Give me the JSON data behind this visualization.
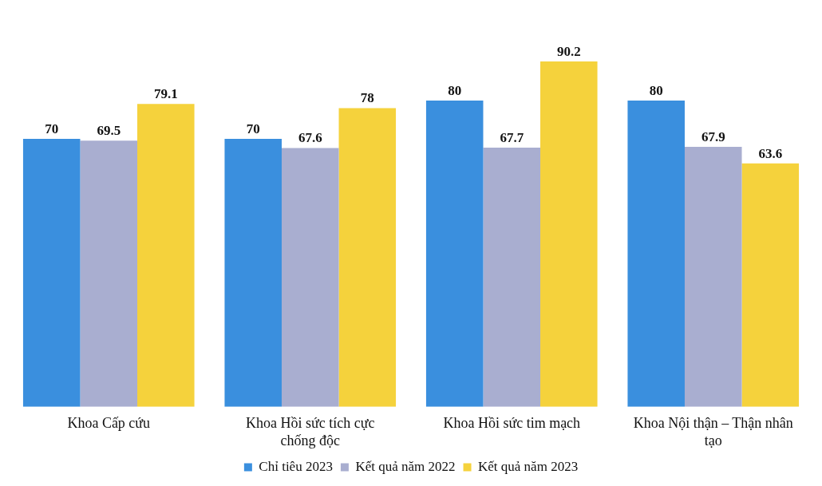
{
  "chart_data": {
    "type": "bar",
    "categories": [
      "Khoa Cấp cứu",
      "Khoa Hồi sức tích cực chống độc",
      "Khoa Hồi sức tim mạch",
      "Khoa Nội thận – Thận nhân tạo"
    ],
    "series": [
      {
        "name": "Chỉ tiêu 2023",
        "color": "#3a8fde",
        "values": [
          70,
          70,
          80,
          80
        ]
      },
      {
        "name": "Kết quả năm 2022",
        "color": "#a9aed0",
        "values": [
          69.5,
          67.6,
          67.7,
          67.9
        ]
      },
      {
        "name": "Kết quả năm 2023",
        "color": "#f5d23c",
        "values": [
          79.1,
          78,
          90.2,
          63.6
        ]
      }
    ],
    "data_labels": true,
    "grid": false,
    "legend": "bottom"
  }
}
